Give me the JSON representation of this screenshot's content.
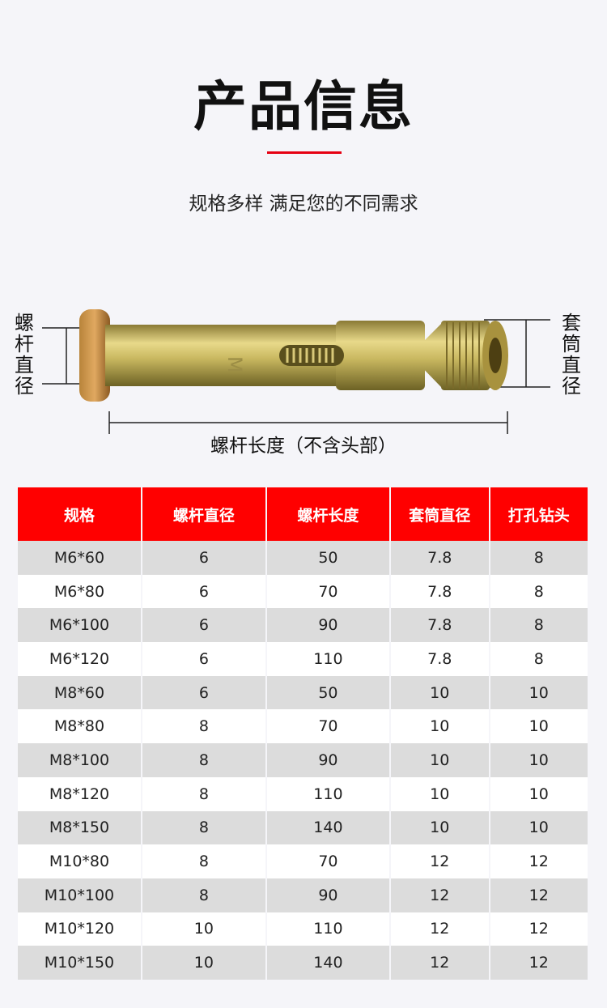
{
  "header": {
    "title": "产品信息",
    "subtitle": "规格多样 满足您的不同需求",
    "accent_color": "#e60012"
  },
  "diagram": {
    "bolt_diameter_label": "螺杆直径",
    "sleeve_diameter_label": "套筒直径",
    "bolt_length_label": "螺杆长度（不含头部）",
    "product_marking": "M"
  },
  "table": {
    "header_color": "#ff0000",
    "columns": [
      "规格",
      "螺杆直径",
      "螺杆长度",
      "套筒直径",
      "打孔钻头"
    ],
    "rows": [
      [
        "M6*60",
        "6",
        "50",
        "7.8",
        "8"
      ],
      [
        "M6*80",
        "6",
        "70",
        "7.8",
        "8"
      ],
      [
        "M6*100",
        "6",
        "90",
        "7.8",
        "8"
      ],
      [
        "M6*120",
        "6",
        "110",
        "7.8",
        "8"
      ],
      [
        "M8*60",
        "6",
        "50",
        "10",
        "10"
      ],
      [
        "M8*80",
        "8",
        "70",
        "10",
        "10"
      ],
      [
        "M8*100",
        "8",
        "90",
        "10",
        "10"
      ],
      [
        "M8*120",
        "8",
        "110",
        "10",
        "10"
      ],
      [
        "M8*150",
        "8",
        "140",
        "10",
        "10"
      ],
      [
        "M10*80",
        "8",
        "70",
        "12",
        "12"
      ],
      [
        "M10*100",
        "8",
        "90",
        "12",
        "12"
      ],
      [
        "M10*120",
        "10",
        "110",
        "12",
        "12"
      ],
      [
        "M10*150",
        "10",
        "140",
        "12",
        "12"
      ]
    ]
  }
}
